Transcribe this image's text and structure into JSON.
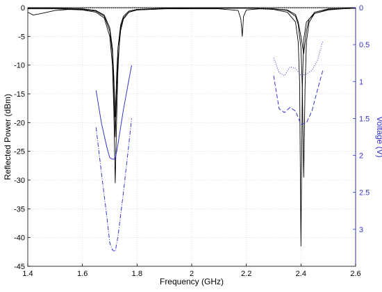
{
  "chart_data": {
    "type": "line",
    "title": "",
    "xlabel": "Frequency (GHz)",
    "ylabel_left": "Reflected Power (dBm)",
    "ylabel_right": "Voltage (V)",
    "xlim": [
      1.4,
      2.6
    ],
    "ylim_left": [
      -45,
      0
    ],
    "ylim_right": [
      0,
      3.5
    ],
    "right_axis_reversed": true,
    "grid": "dotted",
    "colors": {
      "reflected": "#000000",
      "voltage": "#3333cc",
      "grid": "#c8c8c8"
    },
    "x_ticks": [
      "1.4",
      "1.6",
      "1.8",
      "2",
      "2.2",
      "2.4",
      "2.6"
    ],
    "x_tick_values": [
      1.4,
      1.6,
      1.8,
      2.0,
      2.2,
      2.4,
      2.6
    ],
    "y_left_ticks": [
      "0",
      "-5",
      "-10",
      "-15",
      "-20",
      "-25",
      "-30",
      "-35",
      "-40",
      "-45"
    ],
    "y_left_tick_values": [
      0,
      -5,
      -10,
      -15,
      -20,
      -25,
      -30,
      -35,
      -40,
      -45
    ],
    "y_right_ticks": [
      "0",
      "0.5",
      "1",
      "1.5",
      "2",
      "2.5",
      "3"
    ],
    "y_right_tick_values": [
      0,
      0.5,
      1,
      1.5,
      2,
      2.5,
      3
    ],
    "series": [
      {
        "axis": "left",
        "style": "solid",
        "x": [
          1.4,
          1.42,
          1.45,
          1.5,
          1.55,
          1.6,
          1.65,
          1.68,
          1.7,
          1.71,
          1.715,
          1.72,
          1.725,
          1.73,
          1.735,
          1.74,
          1.75,
          1.77,
          1.8,
          1.9,
          2.0,
          2.1,
          2.17,
          2.18,
          2.185,
          2.19,
          2.2,
          2.25,
          2.3,
          2.35,
          2.38,
          2.39,
          2.395,
          2.4,
          2.405,
          2.41,
          2.42,
          2.45,
          2.5,
          2.55,
          2.6
        ],
        "y": [
          -0.8,
          -1.3,
          -1.0,
          -0.5,
          -0.3,
          -0.4,
          -0.8,
          -1.8,
          -5.0,
          -10.0,
          -18.0,
          -30.5,
          -20.0,
          -11.0,
          -6.0,
          -3.5,
          -1.8,
          -0.8,
          -0.4,
          -0.2,
          -0.2,
          -0.2,
          -0.5,
          -2.0,
          -5.0,
          -1.5,
          -0.4,
          -0.2,
          -0.3,
          -0.8,
          -2.5,
          -6.0,
          -13.0,
          -41.5,
          -14.0,
          -5.5,
          -2.5,
          -1.0,
          -0.4,
          -0.2,
          -0.1
        ]
      },
      {
        "axis": "left",
        "style": "solid",
        "x": [
          1.4,
          1.5,
          1.6,
          1.65,
          1.68,
          1.7,
          1.71,
          1.715,
          1.72,
          1.725,
          1.73,
          1.74,
          1.75,
          1.77,
          1.8,
          1.9,
          2.0,
          2.1,
          2.2,
          2.3,
          2.35,
          2.38,
          2.39,
          2.4,
          2.405,
          2.41,
          2.415,
          2.42,
          2.43,
          2.45,
          2.5,
          2.6
        ],
        "y": [
          -0.2,
          -0.2,
          -0.3,
          -0.6,
          -1.5,
          -4.0,
          -8.0,
          -14.0,
          -22.5,
          -15.0,
          -9.0,
          -4.0,
          -2.0,
          -0.8,
          -0.4,
          -0.2,
          -0.1,
          -0.1,
          -0.1,
          -0.2,
          -0.5,
          -1.5,
          -3.0,
          -7.0,
          -14.0,
          -29.5,
          -14.0,
          -6.0,
          -2.5,
          -1.0,
          -0.3,
          -0.1
        ]
      },
      {
        "axis": "left",
        "style": "solid",
        "x": [
          1.4,
          1.5,
          1.6,
          1.65,
          1.68,
          1.7,
          1.71,
          1.715,
          1.72,
          1.725,
          1.73,
          1.74,
          1.75,
          1.77,
          1.8,
          1.9,
          2.0,
          2.1,
          2.2,
          2.3,
          2.35,
          2.38,
          2.39,
          2.4,
          2.41,
          2.42,
          2.43,
          2.45,
          2.5,
          2.6
        ],
        "y": [
          -0.1,
          -0.1,
          -0.2,
          -0.5,
          -1.3,
          -3.5,
          -7.0,
          -12.0,
          -19.0,
          -12.0,
          -7.0,
          -3.0,
          -1.5,
          -0.6,
          -0.3,
          -0.1,
          -0.1,
          -0.1,
          -0.1,
          -0.2,
          -0.4,
          -1.2,
          -2.5,
          -5.0,
          -8.0,
          -4.0,
          -2.0,
          -0.8,
          -0.2,
          -0.1
        ]
      },
      {
        "axis": "left",
        "style": "dotted",
        "x": [
          1.4,
          1.6,
          1.8,
          2.0,
          2.2,
          2.4,
          2.6
        ],
        "y": [
          -0.05,
          -0.05,
          -0.05,
          -0.05,
          -0.05,
          -0.05,
          -0.05
        ]
      },
      {
        "axis": "right",
        "style": "solid",
        "x": [
          1.65,
          1.67,
          1.69,
          1.7,
          1.71,
          1.72,
          1.73,
          1.75,
          1.77,
          1.78
        ],
        "y": [
          1.12,
          1.57,
          1.9,
          2.03,
          2.05,
          2.05,
          1.85,
          1.38,
          0.98,
          0.78
        ]
      },
      {
        "axis": "right",
        "style": "dashdot",
        "x": [
          1.65,
          1.67,
          1.69,
          1.7,
          1.71,
          1.72,
          1.73,
          1.75,
          1.77,
          1.78
        ],
        "y": [
          1.62,
          2.25,
          2.85,
          3.18,
          3.28,
          3.3,
          3.1,
          2.5,
          1.85,
          1.5
        ]
      },
      {
        "axis": "right",
        "style": "dashed",
        "x": [
          2.3,
          2.32,
          2.34,
          2.36,
          2.38,
          2.4,
          2.42,
          2.44,
          2.46,
          2.48
        ],
        "y": [
          0.92,
          1.37,
          1.42,
          1.35,
          1.4,
          1.58,
          1.56,
          1.4,
          1.12,
          0.85
        ]
      },
      {
        "axis": "right",
        "style": "dotted",
        "x": [
          2.3,
          2.32,
          2.34,
          2.36,
          2.38,
          2.4,
          2.42,
          2.44,
          2.46,
          2.48
        ],
        "y": [
          0.68,
          0.88,
          0.92,
          0.8,
          0.82,
          0.92,
          0.9,
          0.85,
          0.72,
          0.45
        ]
      }
    ]
  }
}
